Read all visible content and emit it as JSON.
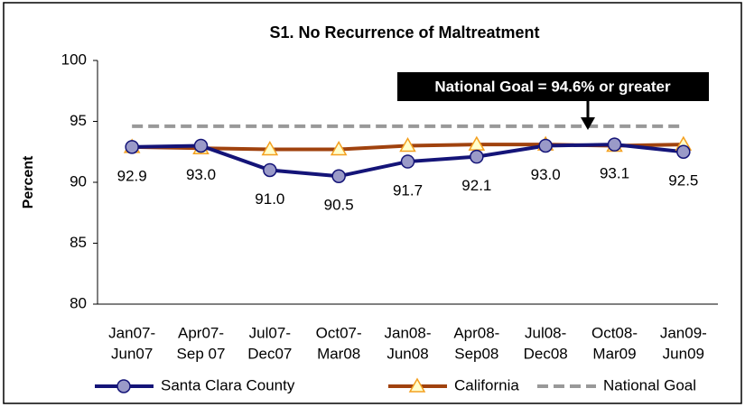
{
  "chart_data": {
    "type": "line",
    "title": "S1. No Recurrence of Maltreatment",
    "y_label": "Percent",
    "categories": [
      [
        "Jan07-",
        "Jun07"
      ],
      [
        "Apr07-",
        "Sep 07"
      ],
      [
        "Jul07-",
        "Dec07"
      ],
      [
        "Oct07-",
        "Mar08"
      ],
      [
        "Jan08-",
        "Jun08"
      ],
      [
        "Apr08-",
        "Sep08"
      ],
      [
        "Jul08-",
        "Dec08"
      ],
      [
        "Oct08-",
        "Mar09"
      ],
      [
        "Jan09-",
        "Jun09"
      ]
    ],
    "series": [
      {
        "name": "Santa Clara County",
        "color": "#141478",
        "marker": "circle",
        "values": [
          92.9,
          93.0,
          91.0,
          90.5,
          91.7,
          92.1,
          93.0,
          93.1,
          92.5
        ],
        "value_labels": [
          "92.9",
          "93.0",
          "91.0",
          "90.5",
          "91.7",
          "92.1",
          "93.0",
          "93.1",
          "92.5"
        ]
      },
      {
        "name": "California",
        "color": "#a0420e",
        "marker": "triangle",
        "values": [
          92.9,
          92.8,
          92.7,
          92.7,
          93.0,
          93.1,
          93.1,
          93.0,
          93.1
        ]
      },
      {
        "name": "National Goal",
        "color": "#999999",
        "dashed": true,
        "values": [
          94.6,
          94.6,
          94.6,
          94.6,
          94.6,
          94.6,
          94.6,
          94.6,
          94.6
        ]
      }
    ],
    "annotation": "National Goal = 94.6% or greater",
    "ylim": [
      80,
      100
    ],
    "yticks": [
      80,
      85,
      90,
      95,
      100
    ],
    "grid": false,
    "legend": "bottom"
  }
}
